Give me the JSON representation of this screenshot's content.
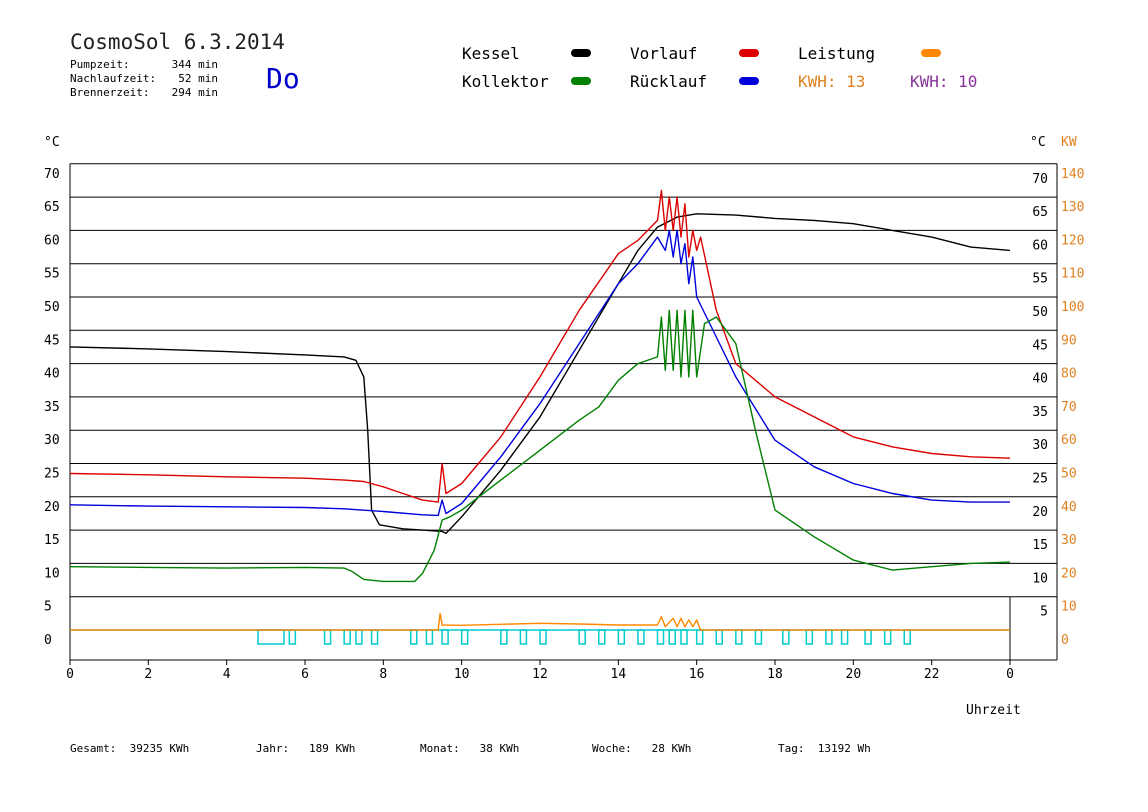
{
  "header": {
    "title": "CosmoSol 6.3.2014",
    "day": "Do",
    "stats": [
      {
        "label": "Pumpzeit:",
        "value": "344 min"
      },
      {
        "label": "Nachlaufzeit:",
        "value": "52 min"
      },
      {
        "label": "Brennerzeit:",
        "value": "294 min"
      }
    ]
  },
  "legend": {
    "kessel": {
      "label": "Kessel",
      "color": "#000000"
    },
    "vorlauf": {
      "label": "Vorlauf",
      "color": "#dd0000"
    },
    "leistung": {
      "label": "Leistung",
      "color": "#ff8800"
    },
    "kollektor": {
      "label": "Kollektor",
      "color": "#008000"
    },
    "ruecklauf": {
      "label": "Rücklauf",
      "color": "#0000dd"
    },
    "kwh1": {
      "label": "KWH: 13",
      "color": "#e08020"
    },
    "kwh2": {
      "label": "KWH: 10",
      "color": "#883399"
    }
  },
  "footer": {
    "gesamt": "Gesamt:  39235 KWh",
    "jahr": "Jahr:   189 KWh",
    "monat": "Monat:   38 KWh",
    "woche": "Woche:   28 KWh",
    "tag": "Tag:  13192 Wh"
  },
  "chart_data": {
    "type": "line",
    "xlabel": "Uhrzeit",
    "ylabel_left": "°C",
    "ylabel_right_1": "°C",
    "ylabel_right_2": "KW",
    "xlim": [
      0,
      24
    ],
    "ylim": [
      0,
      70
    ],
    "ylim_right_kw": [
      0,
      140
    ],
    "x_ticks": [
      "0",
      "2",
      "4",
      "6",
      "8",
      "10",
      "12",
      "14",
      "16",
      "18",
      "20",
      "22",
      "0"
    ],
    "y_ticks": [
      0,
      5,
      10,
      15,
      20,
      25,
      30,
      35,
      40,
      45,
      50,
      55,
      60,
      65,
      70
    ],
    "kw_ticks": [
      0,
      10,
      20,
      30,
      40,
      50,
      60,
      70,
      80,
      90,
      100,
      110,
      120,
      130,
      140
    ],
    "grid": true,
    "series": [
      {
        "name": "Kessel",
        "color": "#000000",
        "points": [
          [
            0,
            42.5
          ],
          [
            2,
            42.2
          ],
          [
            4,
            41.8
          ],
          [
            6,
            41.3
          ],
          [
            7,
            41.0
          ],
          [
            7.3,
            40.5
          ],
          [
            7.5,
            38
          ],
          [
            7.6,
            30
          ],
          [
            7.7,
            18
          ],
          [
            7.9,
            15.8
          ],
          [
            8.5,
            15.2
          ],
          [
            9.0,
            15.0
          ],
          [
            9.5,
            14.8
          ],
          [
            9.6,
            14.5
          ],
          [
            10,
            17
          ],
          [
            11,
            24
          ],
          [
            12,
            32
          ],
          [
            13,
            42
          ],
          [
            14,
            52
          ],
          [
            14.5,
            57
          ],
          [
            15,
            60.5
          ],
          [
            15.5,
            62
          ],
          [
            16,
            62.5
          ],
          [
            17,
            62.3
          ],
          [
            18,
            61.8
          ],
          [
            19,
            61.5
          ],
          [
            20,
            61
          ],
          [
            21,
            60
          ],
          [
            22,
            59
          ],
          [
            23,
            57.5
          ],
          [
            24,
            57
          ]
        ]
      },
      {
        "name": "Vorlauf",
        "color": "#dd0000",
        "points": [
          [
            0,
            23.5
          ],
          [
            2,
            23.3
          ],
          [
            4,
            23.0
          ],
          [
            6,
            22.8
          ],
          [
            7,
            22.5
          ],
          [
            7.5,
            22.3
          ],
          [
            8,
            21.5
          ],
          [
            8.5,
            20.5
          ],
          [
            9.0,
            19.5
          ],
          [
            9.4,
            19.2
          ],
          [
            9.5,
            25
          ],
          [
            9.6,
            20.5
          ],
          [
            10,
            22
          ],
          [
            11,
            29
          ],
          [
            12,
            38
          ],
          [
            13,
            48
          ],
          [
            14,
            56.5
          ],
          [
            14.5,
            58.5
          ],
          [
            15,
            61.5
          ],
          [
            15.1,
            66
          ],
          [
            15.2,
            60
          ],
          [
            15.3,
            65
          ],
          [
            15.4,
            60
          ],
          [
            15.5,
            65
          ],
          [
            15.6,
            59
          ],
          [
            15.7,
            64
          ],
          [
            15.8,
            56
          ],
          [
            15.9,
            60
          ],
          [
            16,
            57
          ],
          [
            16.1,
            59
          ],
          [
            16.5,
            48
          ],
          [
            17,
            40
          ],
          [
            18,
            35
          ],
          [
            19,
            32
          ],
          [
            20,
            29
          ],
          [
            21,
            27.5
          ],
          [
            22,
            26.5
          ],
          [
            23,
            26
          ],
          [
            24,
            25.8
          ]
        ]
      },
      {
        "name": "Rücklauf",
        "color": "#0000dd",
        "points": [
          [
            0,
            18.8
          ],
          [
            2,
            18.6
          ],
          [
            4,
            18.5
          ],
          [
            6,
            18.4
          ],
          [
            7,
            18.2
          ],
          [
            8,
            17.8
          ],
          [
            9,
            17.3
          ],
          [
            9.4,
            17.2
          ],
          [
            9.5,
            19.5
          ],
          [
            9.6,
            17.5
          ],
          [
            10,
            19
          ],
          [
            11,
            26
          ],
          [
            12,
            34
          ],
          [
            13,
            43
          ],
          [
            14,
            52
          ],
          [
            14.5,
            55
          ],
          [
            15,
            59
          ],
          [
            15.2,
            57
          ],
          [
            15.3,
            60
          ],
          [
            15.4,
            56
          ],
          [
            15.5,
            60
          ],
          [
            15.6,
            55
          ],
          [
            15.7,
            58
          ],
          [
            15.8,
            52
          ],
          [
            15.9,
            56
          ],
          [
            16,
            50
          ],
          [
            16.5,
            44
          ],
          [
            17,
            38
          ],
          [
            18,
            28.5
          ],
          [
            19,
            24.5
          ],
          [
            20,
            22
          ],
          [
            21,
            20.5
          ],
          [
            22,
            19.5
          ],
          [
            23,
            19.2
          ],
          [
            24,
            19.2
          ]
        ]
      },
      {
        "name": "Kollektor",
        "color": "#008000",
        "points": [
          [
            0,
            9.5
          ],
          [
            2,
            9.4
          ],
          [
            4,
            9.3
          ],
          [
            6,
            9.4
          ],
          [
            7,
            9.3
          ],
          [
            7.2,
            8.8
          ],
          [
            7.5,
            7.6
          ],
          [
            8,
            7.3
          ],
          [
            8.8,
            7.3
          ],
          [
            9.0,
            8.5
          ],
          [
            9.3,
            12
          ],
          [
            9.5,
            16.5
          ],
          [
            9.7,
            17
          ],
          [
            10,
            18
          ],
          [
            11,
            22.5
          ],
          [
            12,
            27
          ],
          [
            13,
            31.5
          ],
          [
            13.5,
            33.5
          ],
          [
            14,
            37.5
          ],
          [
            14.5,
            40
          ],
          [
            15,
            41
          ],
          [
            15.1,
            47
          ],
          [
            15.2,
            39
          ],
          [
            15.3,
            48
          ],
          [
            15.4,
            39
          ],
          [
            15.5,
            48
          ],
          [
            15.6,
            38
          ],
          [
            15.7,
            48
          ],
          [
            15.8,
            38
          ],
          [
            15.9,
            48
          ],
          [
            16,
            38
          ],
          [
            16.2,
            46
          ],
          [
            16.5,
            47
          ],
          [
            17,
            43
          ],
          [
            17.5,
            30
          ],
          [
            18,
            18
          ],
          [
            19,
            14
          ],
          [
            20,
            10.5
          ],
          [
            21,
            9.0
          ],
          [
            22,
            9.5
          ],
          [
            23,
            10
          ],
          [
            24,
            10.2
          ]
        ]
      },
      {
        "name": "Leistung",
        "color": "#ff8800",
        "axis": "kw",
        "points": [
          [
            0,
            0
          ],
          [
            9.4,
            0
          ],
          [
            9.45,
            5
          ],
          [
            9.5,
            1.5
          ],
          [
            10,
            1.4
          ],
          [
            12,
            2.0
          ],
          [
            13,
            1.8
          ],
          [
            14,
            1.5
          ],
          [
            15,
            1.5
          ],
          [
            15.1,
            4
          ],
          [
            15.2,
            1
          ],
          [
            15.4,
            3.5
          ],
          [
            15.5,
            1
          ],
          [
            15.6,
            3.5
          ],
          [
            15.7,
            1
          ],
          [
            15.8,
            3
          ],
          [
            15.9,
            1
          ],
          [
            16.0,
            3
          ],
          [
            16.1,
            0
          ],
          [
            24,
            0
          ]
        ]
      }
    ]
  }
}
